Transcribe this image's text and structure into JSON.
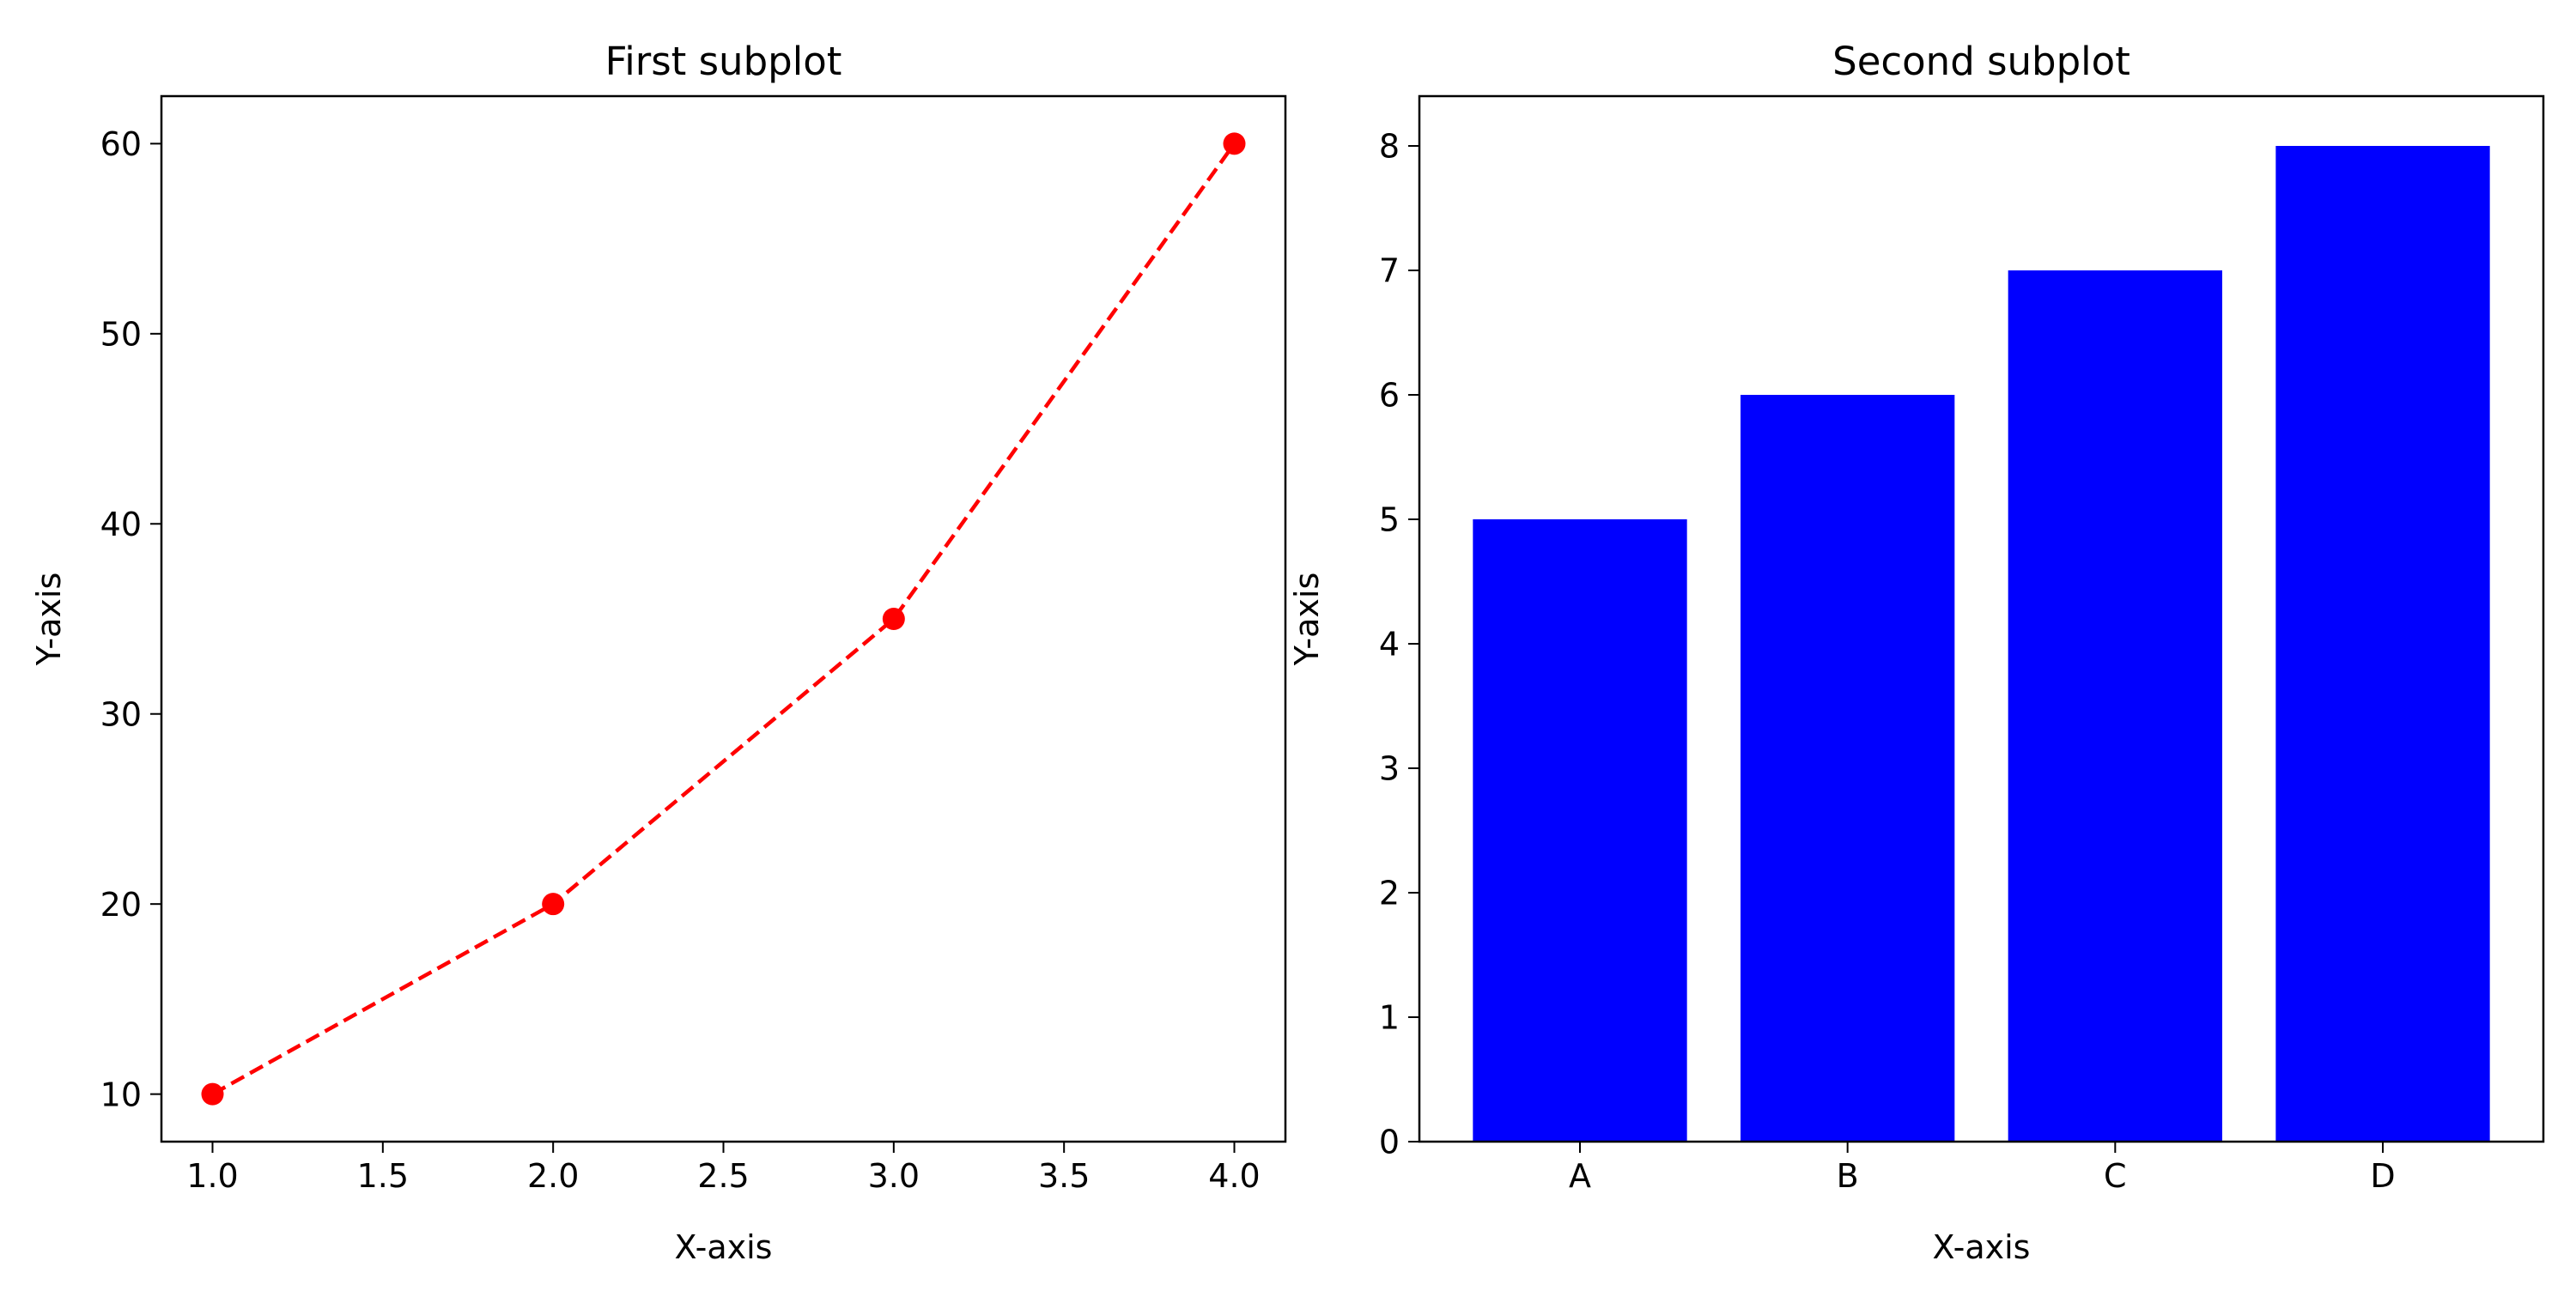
{
  "chart_data": [
    {
      "type": "line",
      "title": "First subplot",
      "xlabel": "X-axis",
      "ylabel": "Y-axis",
      "x": [
        1.0,
        2.0,
        3.0,
        4.0
      ],
      "series": [
        {
          "values": [
            10,
            20,
            35,
            60
          ],
          "color": "#ff0000",
          "line_style": "dashed",
          "marker": "circle"
        }
      ],
      "xlim": [
        0.85,
        4.15
      ],
      "ylim": [
        7.5,
        62.5
      ],
      "xticks": [
        "1.0",
        "1.5",
        "2.0",
        "2.5",
        "3.0",
        "3.5",
        "4.0"
      ],
      "yticks": [
        "10",
        "20",
        "30",
        "40",
        "50",
        "60"
      ],
      "grid": false
    },
    {
      "type": "bar",
      "title": "Second subplot",
      "xlabel": "X-axis",
      "ylabel": "Y-axis",
      "categories": [
        "A",
        "B",
        "C",
        "D"
      ],
      "values": [
        5,
        6,
        7,
        8
      ],
      "color": "#0000ff",
      "ylim": [
        0,
        8.4
      ],
      "yticks": [
        "0",
        "1",
        "2",
        "3",
        "4",
        "5",
        "6",
        "7",
        "8"
      ],
      "grid": false
    }
  ]
}
